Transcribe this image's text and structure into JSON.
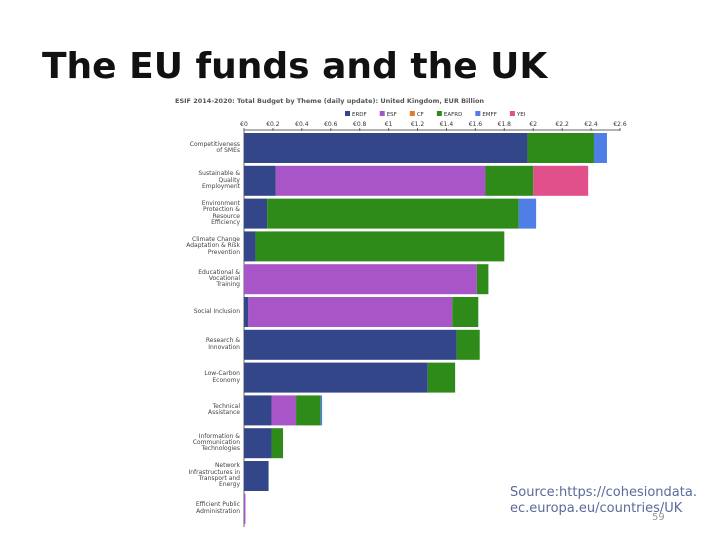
{
  "slide_title": "The EU funds and the UK",
  "source": [
    "Source:https://cohesiondata.",
    "ec.europa.eu/countries/UK"
  ],
  "page_number": "59",
  "chart_data": {
    "type": "stacked-barh",
    "title": "ESIF 2014-2020: Total Budget by Theme (daily update): United Kingdom, EUR Billion",
    "categories": [
      "Competitiveness of SMEs",
      "Sustainable & Quality Employment",
      "Environment Protection & Resource Efficiency",
      "Climate Change Adaptation & Risk Prevention",
      "Educational & Vocational Training",
      "Social Inclusion",
      "Research & Innovation",
      "Low-Carbon Economy",
      "Technical Assistance",
      "Information & Communication Technologies",
      "Network Infrastructures in Transport and Energy",
      "Efficient Public Administration"
    ],
    "series": [
      {
        "name": "ERDF",
        "color": "#34468a",
        "values": [
          1.96,
          0.22,
          0.16,
          0.08,
          0,
          0.03,
          1.47,
          1.27,
          0.19,
          0.19,
          0.17,
          0
        ]
      },
      {
        "name": "ESF",
        "color": "#a855c8",
        "values": [
          0,
          1.45,
          0,
          0,
          1.61,
          1.41,
          0,
          0,
          0.17,
          0,
          0,
          0.01
        ]
      },
      {
        "name": "CF",
        "color": "#e07a2a",
        "values": [
          0,
          0,
          0,
          0,
          0,
          0,
          0,
          0,
          0,
          0,
          0,
          0
        ]
      },
      {
        "name": "EAFRD",
        "color": "#2e8b1a",
        "values": [
          0.46,
          0.33,
          1.74,
          1.72,
          0.08,
          0.18,
          0.16,
          0.19,
          0.17,
          0.08,
          0,
          0
        ]
      },
      {
        "name": "EMFF",
        "color": "#4f7fe6",
        "values": [
          0.09,
          0,
          0.12,
          0,
          0,
          0,
          0,
          0,
          0.01,
          0,
          0,
          0
        ]
      },
      {
        "name": "YEI",
        "color": "#e0508a",
        "values": [
          0,
          0.38,
          0,
          0,
          0,
          0,
          0,
          0,
          0,
          0,
          0,
          0
        ]
      }
    ],
    "xlim": [
      0,
      2.6
    ],
    "xticks": [
      {
        "value": 0,
        "label": "€0"
      },
      {
        "value": 0.2,
        "label": "€0.2"
      },
      {
        "value": 0.4,
        "label": "€0.4"
      },
      {
        "value": 0.6,
        "label": "€0.6"
      },
      {
        "value": 0.8,
        "label": "€0.8"
      },
      {
        "value": 1,
        "label": "€1"
      },
      {
        "value": 1.2,
        "label": "€1.2"
      },
      {
        "value": 1.4,
        "label": "€1.4"
      },
      {
        "value": 1.6,
        "label": "€1.6"
      },
      {
        "value": 1.8,
        "label": "€1.8"
      },
      {
        "value": 2,
        "label": "€2"
      },
      {
        "value": 2.2,
        "label": "€2.2"
      },
      {
        "value": 2.4,
        "label": "€2.4"
      },
      {
        "value": 2.6,
        "label": "€2.6"
      }
    ]
  }
}
